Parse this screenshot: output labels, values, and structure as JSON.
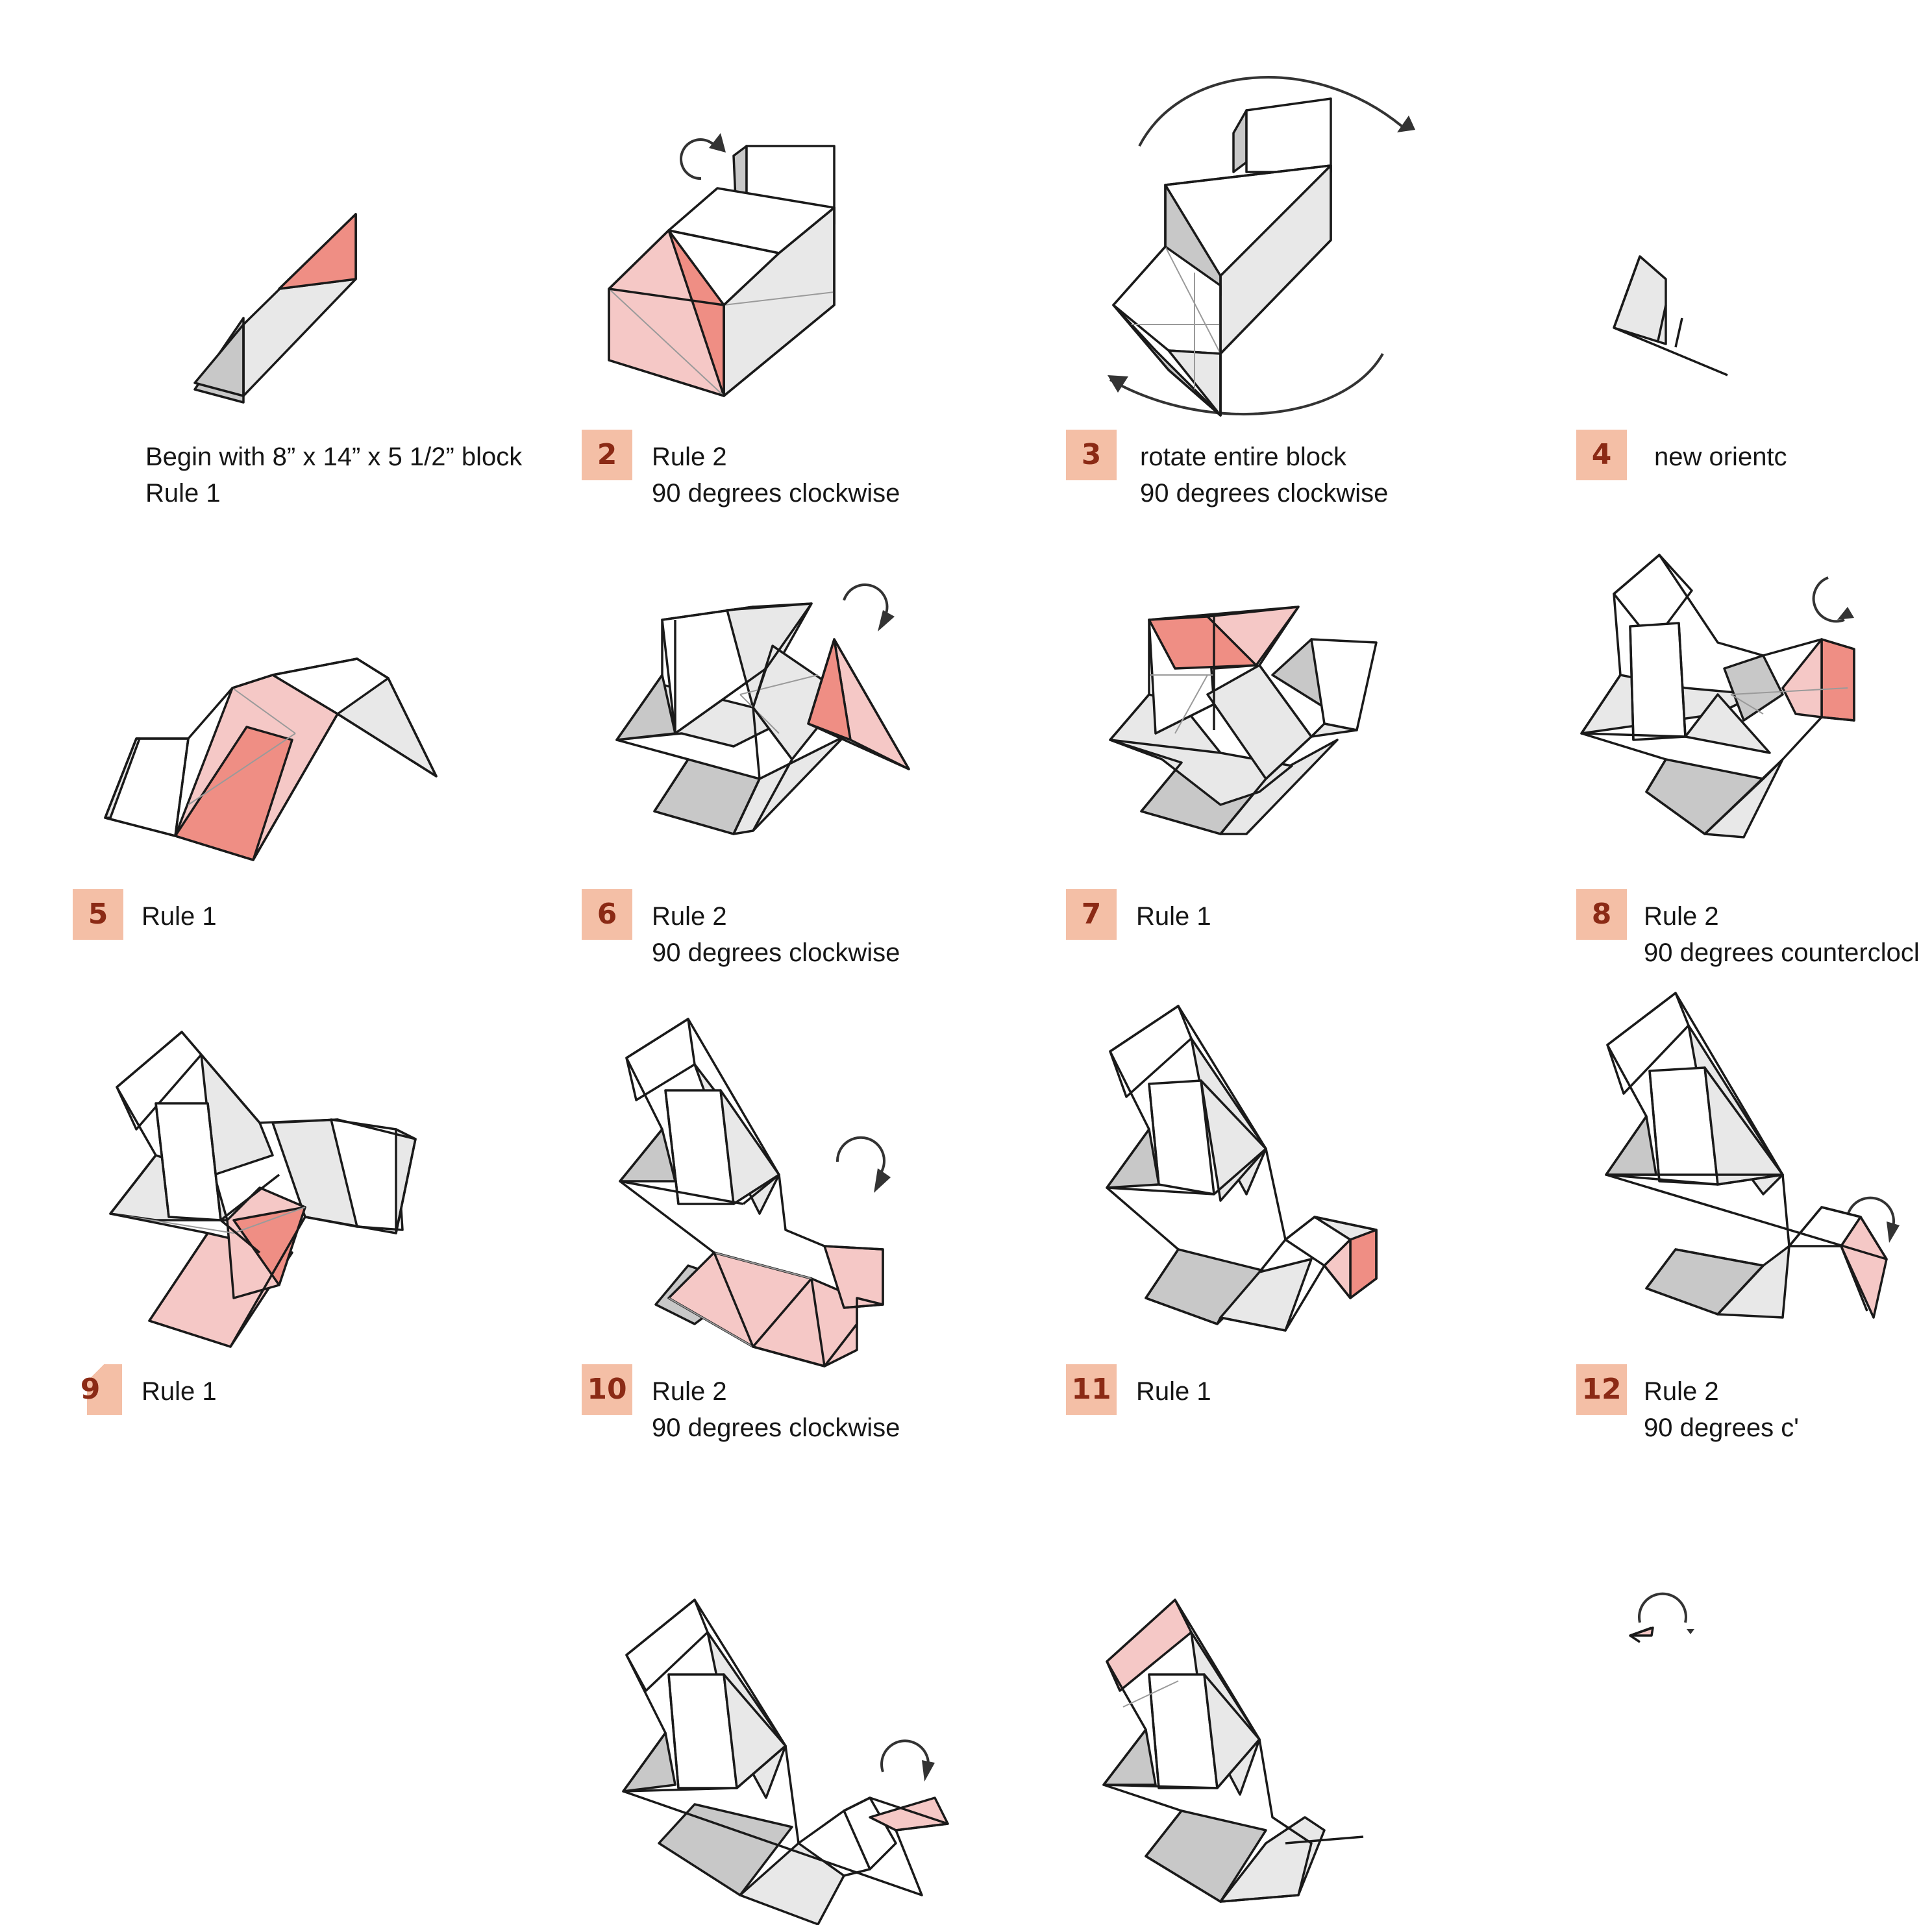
{
  "colors": {
    "badge_fill": "#f4bfa6",
    "badge_text": "#8b2a15",
    "highlight_light": "#f5c8c6",
    "highlight_dark": "#ef8e84",
    "face_light": "#e8e8e8",
    "face_shade": "#c8c8c8"
  },
  "steps": [
    {
      "number": "",
      "line1": "Begin with 8” x 14” x 5 1/2” block",
      "line2": "Rule 1"
    },
    {
      "number": "2",
      "line1": "Rule 2",
      "line2": "90 degrees clockwise"
    },
    {
      "number": "3",
      "line1": "rotate entire block",
      "line2": "90 degrees clockwise"
    },
    {
      "number": "4",
      "line1": "new orientc",
      "line2": ""
    },
    {
      "number": "5",
      "line1": "Rule 1",
      "line2": ""
    },
    {
      "number": "6",
      "line1": "Rule 2",
      "line2": "90 degrees clockwise"
    },
    {
      "number": "7",
      "line1": "Rule 1",
      "line2": ""
    },
    {
      "number": "8",
      "line1": "Rule 2",
      "line2": "90 degrees counterclocl"
    },
    {
      "number": "9",
      "line1": "Rule 1",
      "line2": ""
    },
    {
      "number": "10",
      "line1": "Rule 2",
      "line2": "90 degrees clockwise"
    },
    {
      "number": "11",
      "line1": "Rule 1",
      "line2": ""
    },
    {
      "number": "12",
      "line1": "Rule 2",
      "line2": "90 degrees c'"
    }
  ],
  "icons": {
    "rotate_clockwise": "rotate-clockwise-arrow-icon",
    "rotate_counterclockwise": "rotate-counterclockwise-arrow-icon"
  }
}
